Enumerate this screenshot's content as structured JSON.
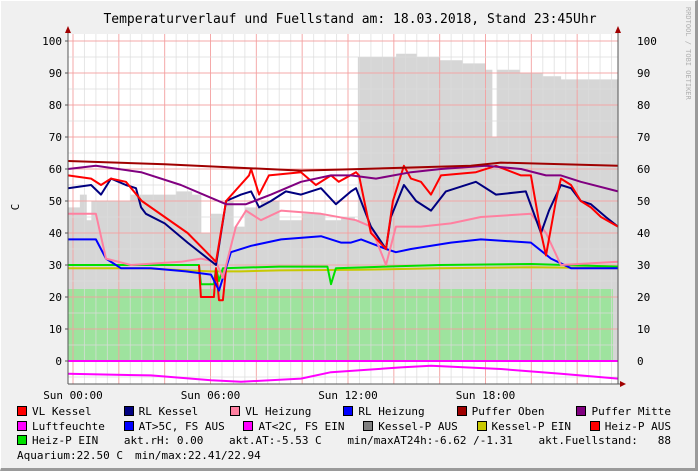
{
  "chart_data": {
    "type": "line",
    "title": "Temperaturverlauf und Fuellstand am: 18.03.2018, Stand 23:45Uhr",
    "ylabel": "C",
    "watermark": "RRDTOOL / TOBI OETIKER",
    "ylim": [
      -7,
      102
    ],
    "xlim": [
      -0.22,
      23.78
    ],
    "x_unit": "hours since Sun 00:00",
    "yticks": [
      0,
      10,
      20,
      30,
      40,
      50,
      60,
      70,
      80,
      90,
      100
    ],
    "xticks": [
      {
        "x": 0,
        "label": "Sun 00:00"
      },
      {
        "x": 6,
        "label": "Sun 06:00"
      },
      {
        "x": 12,
        "label": "Sun 12:00"
      },
      {
        "x": 18,
        "label": "Sun 18:00"
      }
    ],
    "grid": true,
    "colors": {
      "major_grid": "#f4a0a0",
      "minor_grid": "#dcdcdc",
      "axis_arrow": "#a00000"
    },
    "areas": [
      {
        "id": "fuellstand",
        "color": "#d6d6d6",
        "points": [
          [
            -0.22,
            48
          ],
          [
            0.3,
            52
          ],
          [
            0.6,
            44
          ],
          [
            0.8,
            50
          ],
          [
            1.5,
            50
          ],
          [
            2.5,
            52
          ],
          [
            3.5,
            52
          ],
          [
            4.5,
            53
          ],
          [
            5.2,
            52
          ],
          [
            5.6,
            40
          ],
          [
            6.0,
            46
          ],
          [
            6.6,
            50
          ],
          [
            7.0,
            42
          ],
          [
            7.5,
            48
          ],
          [
            8.2,
            50
          ],
          [
            9.0,
            44
          ],
          [
            10.0,
            46
          ],
          [
            11.0,
            44
          ],
          [
            11.7,
            45
          ],
          [
            12.3,
            44
          ],
          [
            12.43,
            95
          ],
          [
            13.0,
            95
          ],
          [
            14.1,
            96
          ],
          [
            15.0,
            95
          ],
          [
            16.0,
            94
          ],
          [
            17.0,
            93
          ],
          [
            18.0,
            91
          ],
          [
            18.3,
            70
          ],
          [
            18.5,
            91
          ],
          [
            19.5,
            90
          ],
          [
            20.5,
            89
          ],
          [
            21.3,
            88
          ],
          [
            23.78,
            88
          ]
        ]
      },
      {
        "id": "aquarium",
        "color": "#9ee39e",
        "points": [
          [
            -0.22,
            22.5
          ],
          [
            23.56,
            22.5
          ]
        ]
      }
    ],
    "series": [
      {
        "name": "Luftfeuchte",
        "color": "#ff00ff",
        "points": [
          [
            -0.22,
            0
          ],
          [
            23.78,
            0
          ]
        ]
      },
      {
        "name": "AT<2C, FS EIN",
        "color": "#ff00ff",
        "points": [
          [
            -0.22,
            -4
          ],
          [
            3.4,
            -4.5
          ],
          [
            6.02,
            -6
          ],
          [
            7.33,
            -6.5
          ],
          [
            9.95,
            -5.5
          ],
          [
            11.26,
            -3.5
          ],
          [
            14.31,
            -2
          ],
          [
            15.62,
            -1.5
          ],
          [
            18.67,
            -2.5
          ],
          [
            21.29,
            -4
          ],
          [
            23.78,
            -5.5
          ]
        ]
      },
      {
        "name": "Kessel-P EIN",
        "color": "#c8c800",
        "points": [
          [
            -0.22,
            29
          ],
          [
            3.0,
            29
          ],
          [
            6.0,
            28
          ],
          [
            7.33,
            28
          ],
          [
            9.0,
            28.3
          ],
          [
            12.5,
            28.5
          ],
          [
            16.0,
            29
          ],
          [
            20.0,
            29.3
          ],
          [
            23.78,
            29
          ]
        ]
      },
      {
        "name": "Heiz-P EIN",
        "color": "#00e000",
        "points": [
          [
            -0.22,
            30
          ],
          [
            5.5,
            30
          ],
          [
            5.58,
            24
          ],
          [
            6.15,
            24
          ],
          [
            6.24,
            29
          ],
          [
            6.37,
            25
          ],
          [
            6.54,
            29
          ],
          [
            9.0,
            29.5
          ],
          [
            11.1,
            29.5
          ],
          [
            11.26,
            24
          ],
          [
            11.47,
            29
          ],
          [
            16.0,
            30
          ],
          [
            20.0,
            30.3
          ],
          [
            23.78,
            29.5
          ]
        ]
      },
      {
        "name": "Heiz-P AUS",
        "color": "#ff0000",
        "points": [
          [
            5.5,
            30
          ],
          [
            5.58,
            20
          ],
          [
            6.15,
            20
          ],
          [
            6.24,
            29
          ],
          [
            6.37,
            19
          ],
          [
            6.54,
            19
          ],
          [
            6.68,
            29
          ]
        ]
      },
      {
        "name": "RL Heizung",
        "color": "#0000ff",
        "points": [
          [
            -0.22,
            38
          ],
          [
            1.0,
            38
          ],
          [
            1.44,
            32
          ],
          [
            2.09,
            29
          ],
          [
            3.4,
            29
          ],
          [
            4.93,
            28
          ],
          [
            6.02,
            27
          ],
          [
            6.37,
            22
          ],
          [
            6.89,
            34
          ],
          [
            7.77,
            36
          ],
          [
            9.08,
            38
          ],
          [
            10.82,
            39
          ],
          [
            11.69,
            37
          ],
          [
            12.13,
            37
          ],
          [
            12.57,
            38
          ],
          [
            13.66,
            35
          ],
          [
            14.09,
            34
          ],
          [
            14.75,
            35
          ],
          [
            16.49,
            37
          ],
          [
            17.8,
            38
          ],
          [
            19.98,
            37
          ],
          [
            20.86,
            32
          ],
          [
            21.73,
            29
          ],
          [
            23.78,
            29
          ]
        ]
      },
      {
        "name": "VL Heizung",
        "color": "#ff80a0",
        "points": [
          [
            -0.22,
            46
          ],
          [
            1.0,
            46
          ],
          [
            1.44,
            32
          ],
          [
            2.53,
            30
          ],
          [
            4.71,
            31
          ],
          [
            5.58,
            32
          ],
          [
            6.24,
            31
          ],
          [
            6.54,
            26
          ],
          [
            7.11,
            42
          ],
          [
            7.55,
            47
          ],
          [
            8.2,
            44
          ],
          [
            9.08,
            47
          ],
          [
            10.82,
            46
          ],
          [
            12.35,
            44
          ],
          [
            13.0,
            42
          ],
          [
            13.66,
            30
          ],
          [
            14.09,
            42
          ],
          [
            15.18,
            42
          ],
          [
            16.49,
            43
          ],
          [
            17.8,
            45
          ],
          [
            19.98,
            46
          ],
          [
            20.64,
            40
          ],
          [
            21.29,
            30
          ],
          [
            23.78,
            31
          ]
        ]
      },
      {
        "name": "RL Kessel",
        "color": "#000080",
        "points": [
          [
            -0.22,
            54
          ],
          [
            0.79,
            55
          ],
          [
            1.22,
            52
          ],
          [
            1.66,
            57
          ],
          [
            2.31,
            55
          ],
          [
            2.75,
            54
          ],
          [
            2.97,
            48
          ],
          [
            3.18,
            46
          ],
          [
            4.0,
            43
          ],
          [
            5.0,
            37
          ],
          [
            6.24,
            30
          ],
          [
            6.68,
            50
          ],
          [
            7.33,
            52
          ],
          [
            7.77,
            53
          ],
          [
            8.12,
            48
          ],
          [
            8.64,
            50
          ],
          [
            9.29,
            53
          ],
          [
            9.95,
            52
          ],
          [
            10.82,
            54
          ],
          [
            11.47,
            49
          ],
          [
            12.13,
            53
          ],
          [
            12.35,
            54
          ],
          [
            13.0,
            42
          ],
          [
            13.66,
            35
          ],
          [
            13.87,
            45
          ],
          [
            14.44,
            55
          ],
          [
            14.97,
            50
          ],
          [
            15.62,
            47
          ],
          [
            16.27,
            53
          ],
          [
            17.58,
            56
          ],
          [
            18.46,
            52
          ],
          [
            19.76,
            53
          ],
          [
            20.42,
            40
          ],
          [
            20.77,
            47
          ],
          [
            21.29,
            55
          ],
          [
            21.73,
            54
          ],
          [
            22.16,
            50
          ],
          [
            22.6,
            49
          ],
          [
            23.25,
            45
          ],
          [
            23.78,
            42
          ]
        ]
      },
      {
        "name": "VL Kessel",
        "color": "#ff0000",
        "points": [
          [
            -0.22,
            58
          ],
          [
            0.79,
            57
          ],
          [
            1.22,
            55
          ],
          [
            1.66,
            57
          ],
          [
            2.31,
            56
          ],
          [
            3.0,
            50
          ],
          [
            4.0,
            45
          ],
          [
            5.0,
            40
          ],
          [
            6.24,
            31
          ],
          [
            6.68,
            50
          ],
          [
            7.68,
            58
          ],
          [
            7.77,
            60
          ],
          [
            8.12,
            52
          ],
          [
            8.55,
            58
          ],
          [
            9.95,
            59
          ],
          [
            10.6,
            55
          ],
          [
            11.26,
            58
          ],
          [
            11.6,
            56
          ],
          [
            12.35,
            59
          ],
          [
            12.48,
            58
          ],
          [
            13.0,
            40
          ],
          [
            13.66,
            35
          ],
          [
            13.96,
            50
          ],
          [
            14.44,
            61
          ],
          [
            14.75,
            57
          ],
          [
            15.18,
            56
          ],
          [
            15.62,
            52
          ],
          [
            16.06,
            58
          ],
          [
            17.58,
            59
          ],
          [
            18.46,
            61
          ],
          [
            19.55,
            58
          ],
          [
            19.98,
            58
          ],
          [
            20.42,
            40
          ],
          [
            20.64,
            33
          ],
          [
            21.07,
            50
          ],
          [
            21.29,
            57
          ],
          [
            21.73,
            55
          ],
          [
            22.16,
            50
          ],
          [
            22.6,
            48
          ],
          [
            23.04,
            45
          ],
          [
            23.78,
            42
          ]
        ]
      },
      {
        "name": "Puffer Mitte",
        "color": "#800080",
        "points": [
          [
            -0.22,
            60
          ],
          [
            1.0,
            61
          ],
          [
            2.97,
            59
          ],
          [
            4.71,
            55
          ],
          [
            6.02,
            51
          ],
          [
            6.68,
            49
          ],
          [
            7.55,
            49
          ],
          [
            8.64,
            52
          ],
          [
            9.95,
            56
          ],
          [
            11.26,
            58
          ],
          [
            12.13,
            58
          ],
          [
            13.22,
            57
          ],
          [
            14.75,
            59
          ],
          [
            16.06,
            60
          ],
          [
            18.02,
            61
          ],
          [
            19.55,
            60
          ],
          [
            20.64,
            58
          ],
          [
            21.29,
            58
          ],
          [
            22.16,
            56
          ],
          [
            23.78,
            53
          ]
        ]
      },
      {
        "name": "Puffer Oben",
        "color": "#a00000",
        "points": [
          [
            -0.22,
            62.5
          ],
          [
            4.0,
            61.5
          ],
          [
            9.95,
            59.5
          ],
          [
            12.57,
            60
          ],
          [
            17.36,
            61
          ],
          [
            18.67,
            62
          ],
          [
            23.78,
            61
          ]
        ]
      }
    ]
  },
  "legend": {
    "rows": [
      [
        {
          "label": "VL Kessel",
          "color": "#ff0000"
        },
        {
          "label": "RL Kessel",
          "color": "#000080"
        },
        {
          "label": "VL Heizung",
          "color": "#ff80a0"
        },
        {
          "label": "RL Heizung",
          "color": "#0000ff"
        },
        {
          "label": "Puffer Oben",
          "color": "#a00000"
        },
        {
          "label": "Puffer Mitte",
          "color": "#800080"
        }
      ],
      [
        {
          "label": "Luftfeuchte",
          "color": "#ff00ff"
        },
        {
          "label": "AT>5C, FS AUS",
          "color": "#0000ff"
        },
        {
          "label": "AT<2C, FS EIN",
          "color": "#ff00ff"
        },
        {
          "label": "Kessel-P AUS",
          "color": "#808080"
        },
        {
          "label": "Kessel-P EIN",
          "color": "#c8c800"
        },
        {
          "label": "Heiz-P AUS",
          "color": "#ff0000"
        }
      ],
      [
        {
          "label": "Heiz-P EIN",
          "color": "#00e000"
        }
      ]
    ],
    "stats_row3": [
      "akt.rH: 0.00",
      "akt.AT:-5.53 C",
      "min/maxAT24h:-6.62 /-1.31",
      "akt.Fuellstand:   88"
    ],
    "stats_row4": [
      "Aquarium:22.50 C",
      "min/max:22.41/22.94"
    ]
  }
}
